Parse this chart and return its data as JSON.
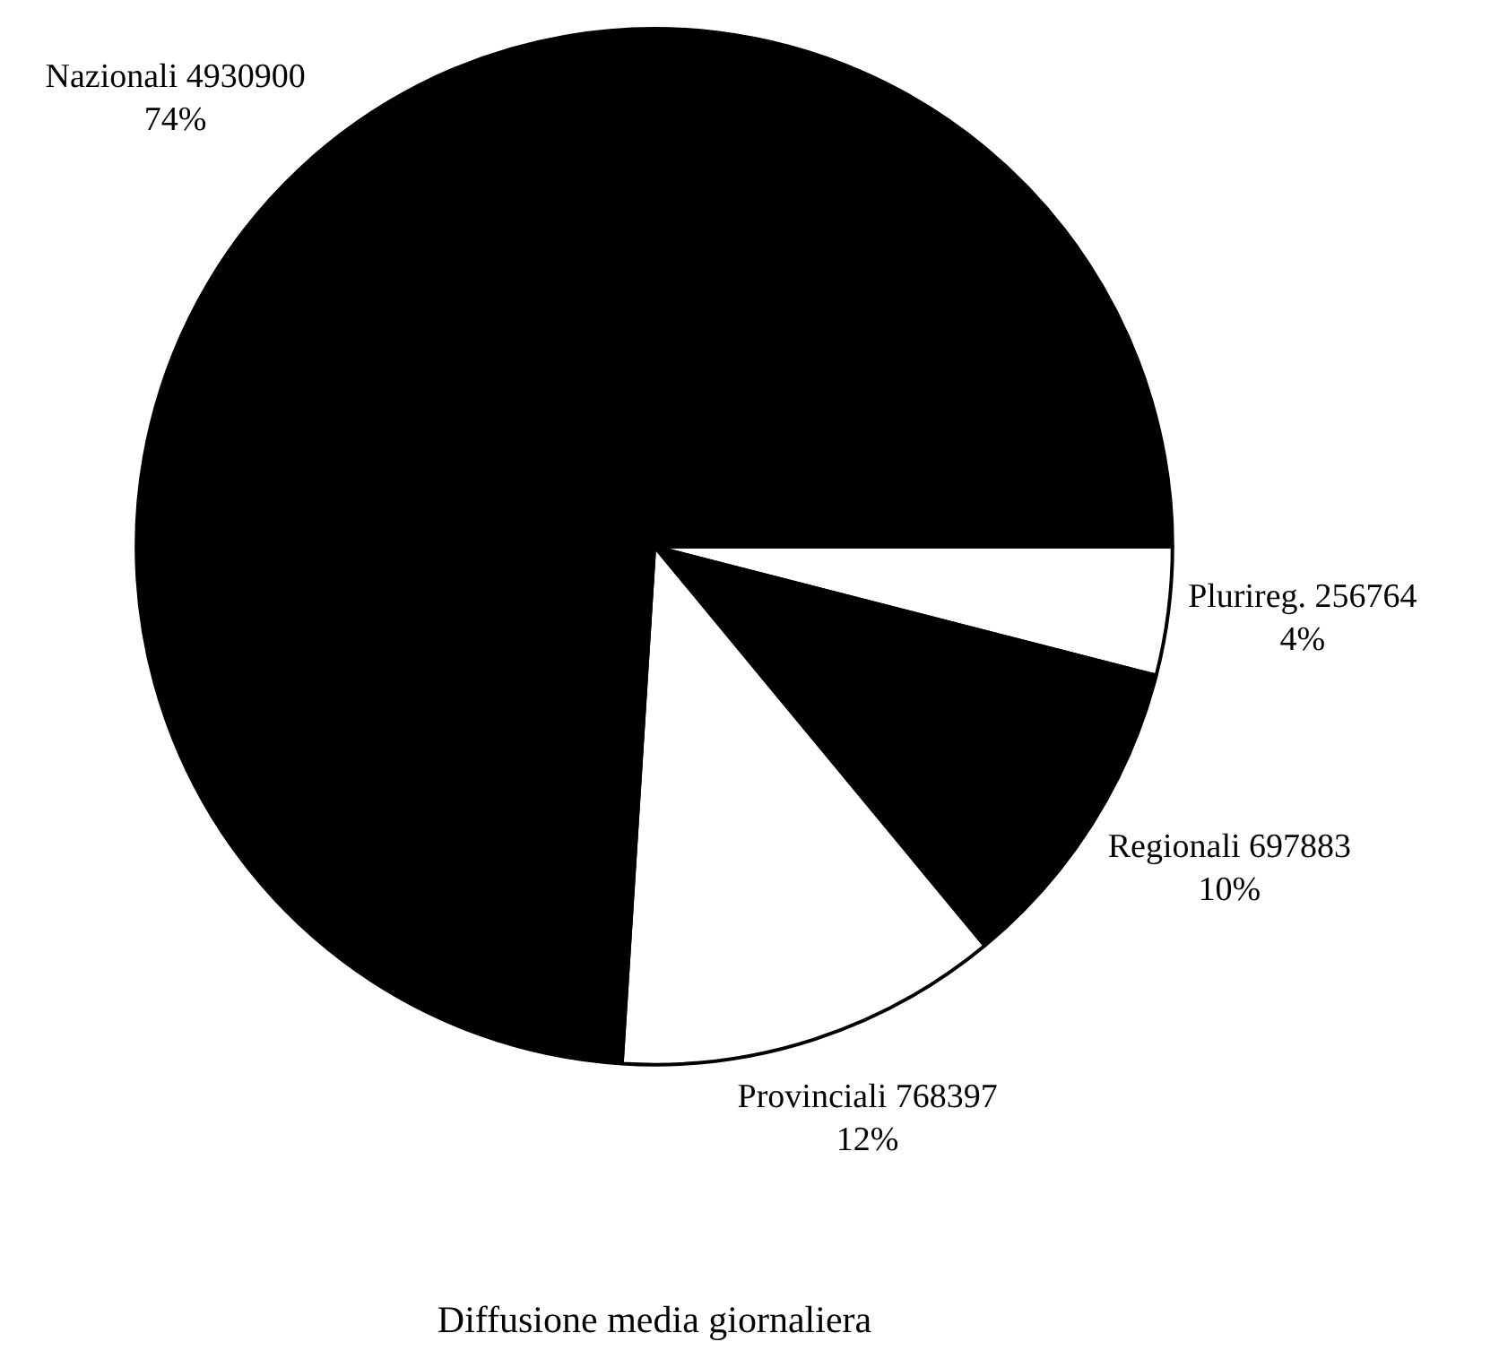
{
  "chart_data": {
    "type": "pie",
    "title": "Diffusione media giornaliera",
    "categories": [
      "Plurireg. 256764",
      "Regionali 697883",
      "Provinciali 768397",
      "Nazionali 4930900"
    ],
    "values": [
      4,
      10,
      12,
      74
    ],
    "colors": [
      "#ffffff",
      "#000000",
      "#ffffff",
      "#000000"
    ],
    "value_labels": [
      "4%",
      "10%",
      "12%",
      "74%"
    ],
    "legend": false
  }
}
